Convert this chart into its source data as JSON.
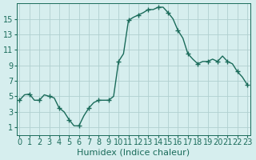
{
  "xlabel": "Humidex (Indice chaleur)",
  "ylabel": "",
  "background_color": "#d6eeee",
  "grid_color": "#b0d0d0",
  "line_color": "#1a6b5a",
  "marker_color": "#1a6b5a",
  "x_data": [
    0,
    0.5,
    1,
    1.5,
    2,
    2.5,
    3,
    3.5,
    4,
    4.5,
    5,
    5.5,
    6,
    6.5,
    7,
    7.5,
    8,
    8.5,
    9,
    9.5,
    10,
    10.5,
    11,
    11.5,
    12,
    12.5,
    13,
    13.5,
    14,
    14.5,
    15,
    15.5,
    16,
    16.5,
    17,
    17.5,
    18,
    18.5,
    19,
    19.5,
    20,
    20.5,
    21,
    21.5,
    22,
    22.5,
    23
  ],
  "y_data": [
    4.5,
    5.2,
    5.3,
    4.5,
    4.5,
    5.2,
    5.0,
    4.8,
    3.5,
    3.0,
    2.0,
    1.2,
    1.2,
    2.5,
    3.5,
    4.2,
    4.5,
    4.5,
    4.5,
    5.0,
    9.5,
    10.5,
    14.8,
    15.2,
    15.5,
    15.8,
    16.2,
    16.2,
    16.5,
    16.5,
    15.8,
    15.0,
    13.5,
    12.5,
    10.5,
    9.8,
    9.2,
    9.5,
    9.5,
    9.8,
    9.5,
    10.2,
    9.5,
    9.2,
    8.2,
    7.5,
    6.5
  ],
  "marker_x": [
    0,
    1,
    2,
    3,
    4,
    5,
    6,
    7,
    8,
    9,
    10,
    11,
    12,
    13,
    14,
    15,
    16,
    17,
    18,
    19,
    20,
    21,
    22,
    23
  ],
  "marker_y": [
    4.5,
    5.3,
    4.5,
    5.0,
    3.5,
    2.0,
    1.2,
    3.5,
    4.5,
    4.5,
    9.5,
    14.8,
    15.5,
    16.2,
    16.5,
    15.8,
    13.5,
    10.5,
    9.2,
    9.5,
    9.5,
    9.5,
    8.2,
    6.5
  ],
  "xlim": [
    -0.3,
    23.3
  ],
  "ylim": [
    0,
    17
  ],
  "yticks": [
    1,
    3,
    5,
    7,
    9,
    11,
    13,
    15
  ],
  "xticks": [
    0,
    1,
    2,
    3,
    4,
    5,
    6,
    7,
    8,
    9,
    10,
    11,
    12,
    13,
    14,
    15,
    16,
    17,
    18,
    19,
    20,
    21,
    22,
    23
  ],
  "title_fontsize": 8,
  "label_fontsize": 8,
  "tick_fontsize": 7
}
